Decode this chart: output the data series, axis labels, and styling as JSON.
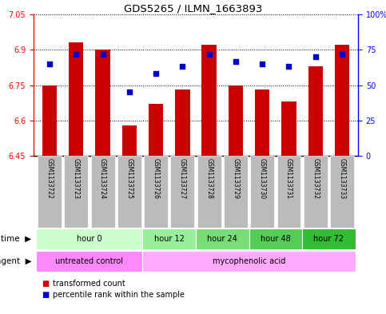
{
  "title": "GDS5265 / ILMN_1663893",
  "samples": [
    "GSM1133722",
    "GSM1133723",
    "GSM1133724",
    "GSM1133725",
    "GSM1133726",
    "GSM1133727",
    "GSM1133728",
    "GSM1133729",
    "GSM1133730",
    "GSM1133731",
    "GSM1133732",
    "GSM1133733"
  ],
  "bar_values": [
    6.75,
    6.93,
    6.9,
    6.58,
    6.67,
    6.73,
    6.92,
    6.75,
    6.73,
    6.68,
    6.83,
    6.92
  ],
  "bar_base": 6.45,
  "dot_values": [
    6.84,
    6.88,
    6.88,
    6.72,
    6.8,
    6.83,
    6.88,
    6.85,
    6.84,
    6.83,
    6.87,
    6.88
  ],
  "bar_color": "#cc0000",
  "dot_color": "#0000cc",
  "ylim": [
    6.45,
    7.05
  ],
  "yticks_left": [
    6.45,
    6.6,
    6.75,
    6.9,
    7.05
  ],
  "yticks_right": [
    0,
    25,
    50,
    75,
    100
  ],
  "ytick_labels_left": [
    "6.45",
    "6.6",
    "6.75",
    "6.9",
    "7.05"
  ],
  "ytick_labels_right": [
    "0",
    "25",
    "50",
    "75",
    "100%"
  ],
  "grid_color": "#000000",
  "time_groups": [
    {
      "label": "hour 0",
      "start": 0,
      "end": 4,
      "color": "#ccffcc"
    },
    {
      "label": "hour 12",
      "start": 4,
      "end": 6,
      "color": "#99ee99"
    },
    {
      "label": "hour 24",
      "start": 6,
      "end": 8,
      "color": "#77dd77"
    },
    {
      "label": "hour 48",
      "start": 8,
      "end": 10,
      "color": "#55cc55"
    },
    {
      "label": "hour 72",
      "start": 10,
      "end": 12,
      "color": "#33bb33"
    }
  ],
  "agent_groups": [
    {
      "label": "untreated control",
      "start": 0,
      "end": 4,
      "color": "#ff88ff"
    },
    {
      "label": "mycophenolic acid",
      "start": 4,
      "end": 12,
      "color": "#ffaaff"
    }
  ],
  "legend_bar": "transformed count",
  "legend_dot": "percentile rank within the sample",
  "bg_color": "#ffffff",
  "sample_bg_color": "#bbbbbb",
  "border_color": "#000000"
}
